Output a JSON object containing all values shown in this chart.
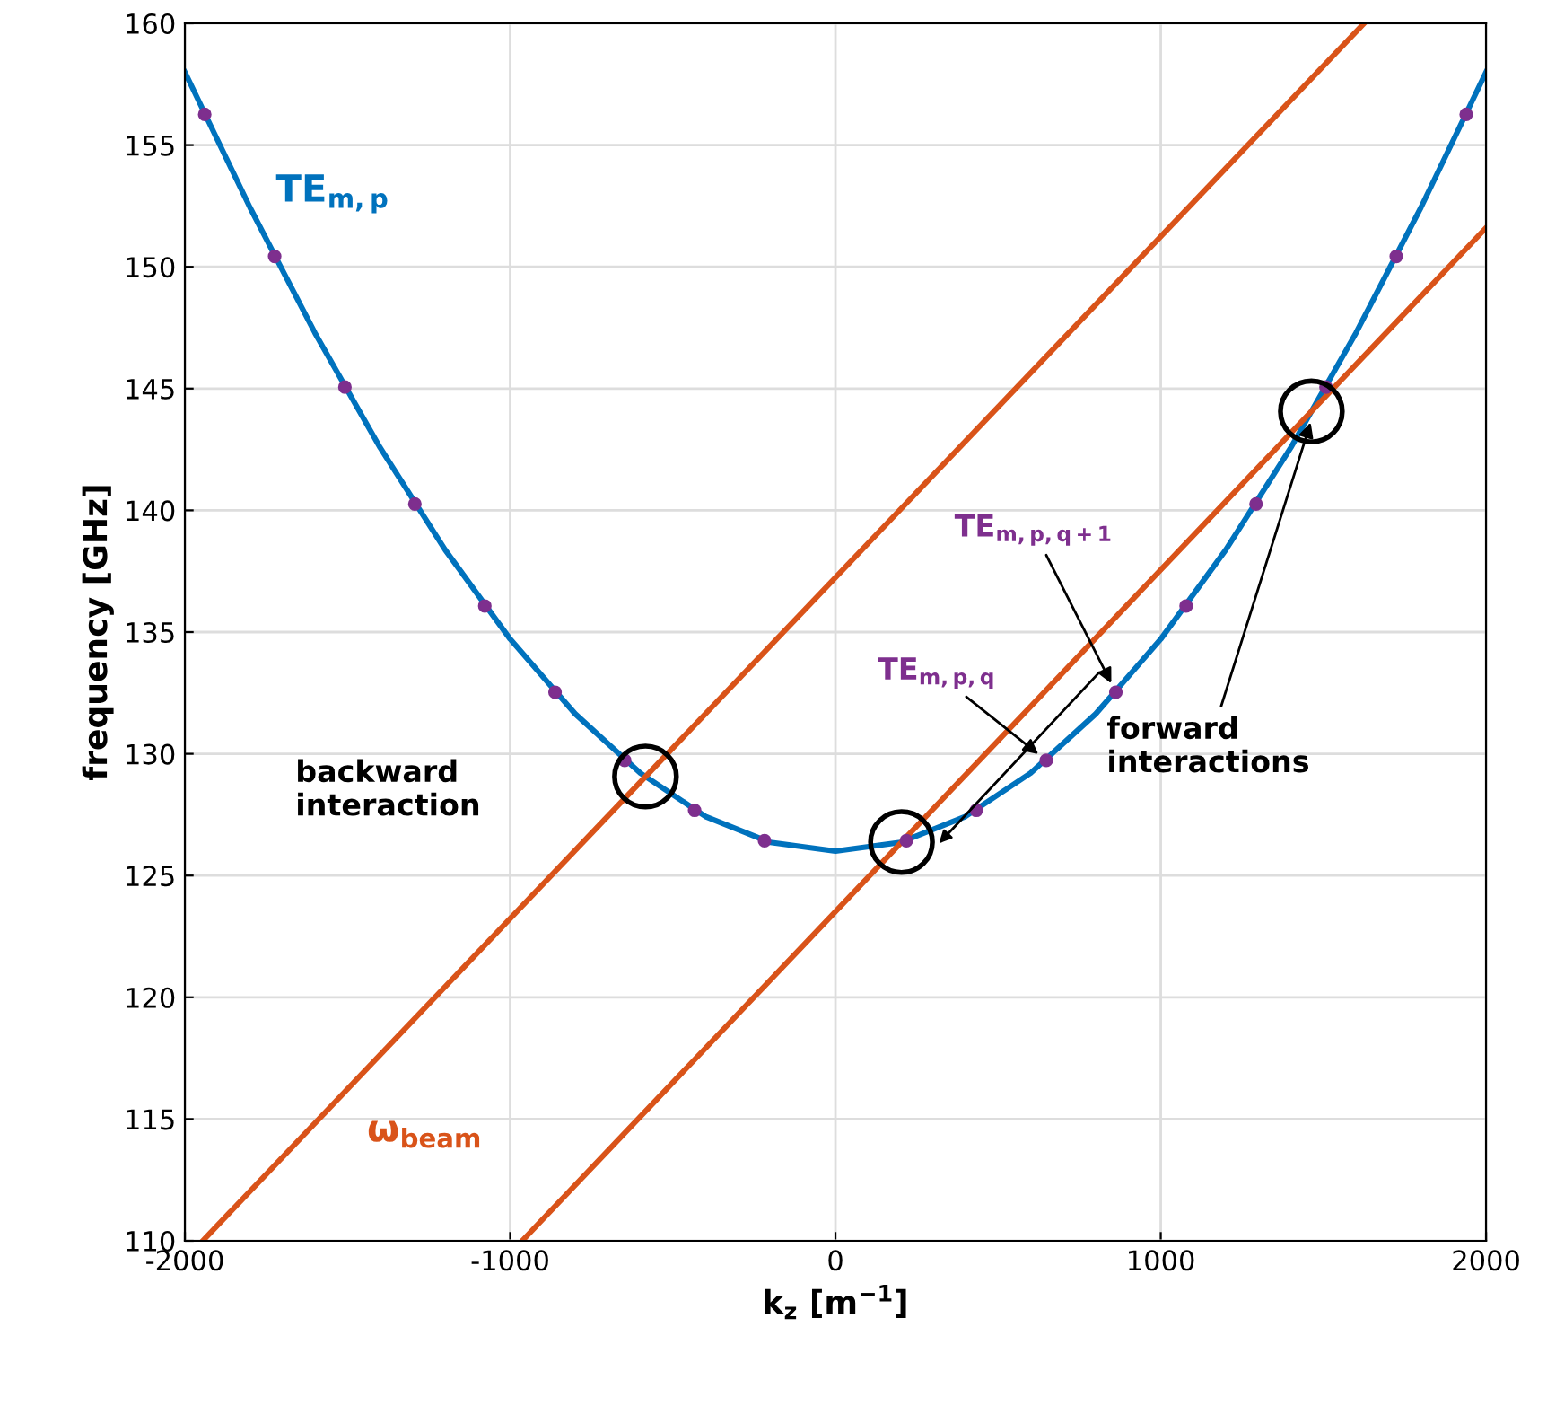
{
  "chart_data": {
    "type": "line",
    "xlabel": "k$_{z}$ [m$^{−1}$]",
    "ylabel": "frequency [GHz]",
    "xlim": [
      -2000,
      2000
    ],
    "ylim": [
      110,
      160
    ],
    "xticks": [
      -2000,
      -1000,
      0,
      1000,
      2000
    ],
    "yticks": [
      110,
      115,
      120,
      125,
      130,
      135,
      140,
      145,
      150,
      155,
      160
    ],
    "grid": true,
    "series": [
      {
        "name": "TE$_{m,p}$",
        "color": "#0072bd",
        "x": [
          -2000,
          -1800,
          -1600,
          -1400,
          -1200,
          -1000,
          -800,
          -600,
          -400,
          -200,
          0,
          200,
          400,
          600,
          800,
          1000,
          1200,
          1400,
          1600,
          1800,
          2000
        ],
        "values": [
          158.0,
          152.44,
          147.28,
          142.58,
          138.38,
          134.71,
          131.64,
          129.21,
          127.43,
          126.36,
          126.0,
          126.36,
          127.43,
          129.21,
          131.64,
          134.71,
          138.38,
          142.58,
          147.28,
          152.44,
          158.0
        ]
      },
      {
        "type": "scatter",
        "marker": "circle",
        "color": "#7e2f8e",
        "x": [
          -1939,
          -1724,
          -1508,
          -1293,
          -1078,
          -862,
          -648,
          -433,
          -218,
          218,
          433,
          648,
          862,
          1078,
          1293,
          1508,
          1724,
          1939
        ],
        "values": [
          156.26,
          150.43,
          145.06,
          140.26,
          136.07,
          132.53,
          129.73,
          127.68,
          126.43,
          126.43,
          127.68,
          129.73,
          132.53,
          136.07,
          140.26,
          145.06,
          150.43,
          156.26
        ]
      },
      {
        "name": "ω$_{beam}$",
        "color": "#d95319",
        "x": [
          -1945,
          1625
        ],
        "values": [
          110,
          160
        ]
      },
      {
        "color": "#d95319",
        "x": [
          -963,
          2000
        ],
        "values": [
          110,
          151.6
        ]
      }
    ],
    "annotations": [
      {
        "text": "TE$_{m,p,q+1}$",
        "x": 862,
        "y": 132.53
      },
      {
        "text": "TE$_{m,p,q}$",
        "x": 648,
        "y": 129.73
      },
      "backward\ninteraction",
      {
        "text": "forward\ninteractions",
        "x": 1470,
        "y": 144
      }
    ]
  }
}
